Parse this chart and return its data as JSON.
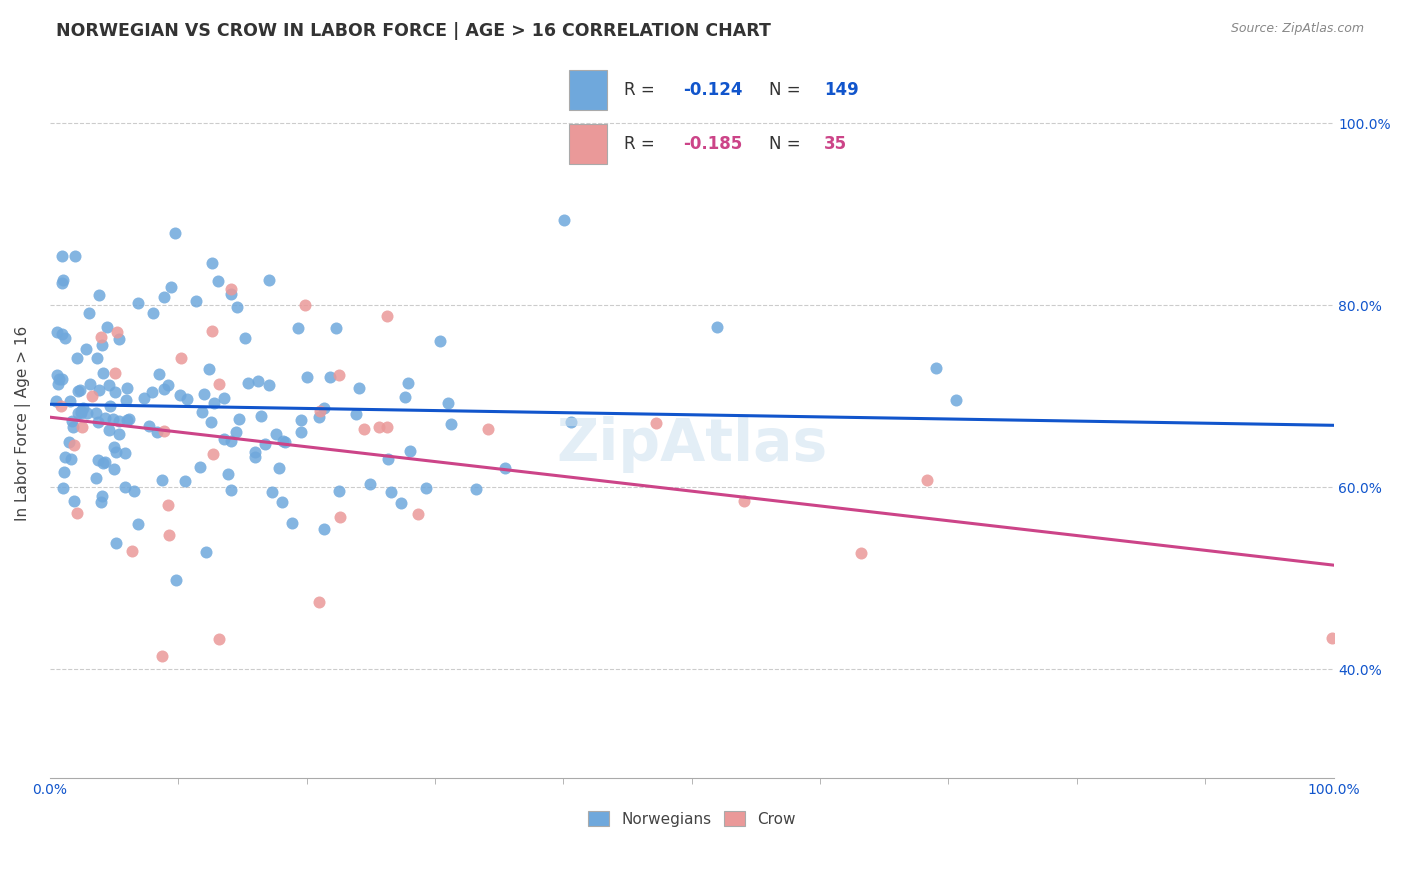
{
  "title": "NORWEGIAN VS CROW IN LABOR FORCE | AGE > 16 CORRELATION CHART",
  "source": "Source: ZipAtlas.com",
  "ylabel": "In Labor Force | Age > 16",
  "yticks_labels": [
    "40.0%",
    "60.0%",
    "80.0%",
    "100.0%"
  ],
  "ytick_vals": [
    0.4,
    0.6,
    0.8,
    1.0
  ],
  "blue_color": "#6fa8dc",
  "pink_color": "#ea9999",
  "blue_line_color": "#1155cc",
  "pink_line_color": "#cc4488",
  "blue_text_color": "#1155cc",
  "pink_text_color": "#cc4488",
  "background_color": "#ffffff",
  "grid_color": "#cccccc",
  "watermark_color": "#cce0f0",
  "xlim": [
    0.0,
    1.0
  ],
  "ylim": [
    0.28,
    1.06
  ],
  "legend_box_r1_text": "R = -0.124   N = 149",
  "legend_box_r2_text": "R = -0.185   N =  35",
  "bottom_legend_labels": [
    "Norwegians",
    "Crow"
  ]
}
